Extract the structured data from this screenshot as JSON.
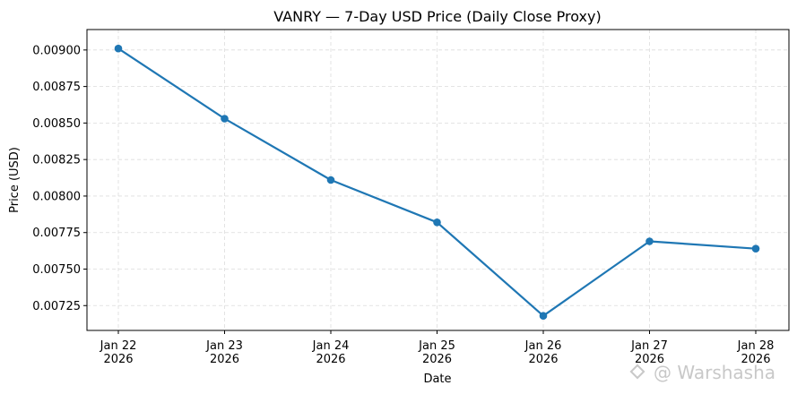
{
  "chart_data": {
    "type": "line",
    "title": "VANRY — 7-Day USD Price (Daily Close Proxy)",
    "xlabel": "Date",
    "ylabel": "Price (USD)",
    "categories": [
      [
        "Jan 22",
        "2026"
      ],
      [
        "Jan 23",
        "2026"
      ],
      [
        "Jan 24",
        "2026"
      ],
      [
        "Jan 25",
        "2026"
      ],
      [
        "Jan 26",
        "2026"
      ],
      [
        "Jan 27",
        "2026"
      ],
      [
        "Jan 28",
        "2026"
      ]
    ],
    "series": [
      {
        "values": [
          0.00901,
          0.00853,
          0.00811,
          0.00782,
          0.00718,
          0.00769,
          0.00764
        ],
        "color": "#1f77b4"
      }
    ],
    "ylim": [
      0.00708,
      0.00914
    ],
    "yticks": [
      "0.00725",
      "0.00750",
      "0.00775",
      "0.00800",
      "0.00825",
      "0.00850",
      "0.00875",
      "0.00900"
    ],
    "grid": true,
    "marker": "circle"
  },
  "watermark": "@ Warshasha"
}
